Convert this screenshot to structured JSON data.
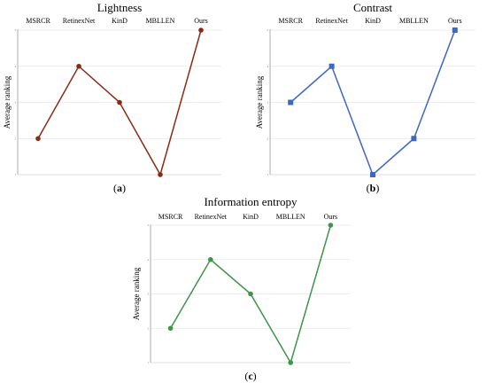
{
  "chart_data": [
    {
      "type": "line",
      "title": "Lightness",
      "ylabel": "Average ranking",
      "panel_label": "a",
      "categories": [
        "MSRCR",
        "RetinexNet",
        "KinD",
        "MBLLEN",
        "Ours"
      ],
      "values": [
        2,
        4,
        3,
        1,
        5
      ],
      "ylim": [
        1,
        5
      ],
      "yticks": [
        "1",
        "2",
        "3",
        "4",
        "5"
      ],
      "color": "#8b2a14",
      "marker": "circle",
      "grid": true
    },
    {
      "type": "line",
      "title": "Contrast",
      "ylabel": "Average ranking",
      "panel_label": "b",
      "categories": [
        "MSRCR",
        "RetinexNet",
        "KinD",
        "MBLLEN",
        "Ours"
      ],
      "values": [
        3,
        4,
        1,
        2,
        5
      ],
      "ylim": [
        1,
        5
      ],
      "yticks": [
        "1",
        "2",
        "3",
        "4",
        "5"
      ],
      "color": "#3f66c4",
      "marker": "square",
      "grid": true
    },
    {
      "type": "line",
      "title": "Information entropy",
      "ylabel": "Average ranking",
      "panel_label": "c",
      "categories": [
        "MSRCR",
        "RetinexNet",
        "KinD",
        "MBLLEN",
        "Ours"
      ],
      "values": [
        2,
        4,
        3,
        1,
        5
      ],
      "ylim": [
        1,
        5
      ],
      "yticks": [
        "1",
        "2",
        "3",
        "4",
        "5"
      ],
      "color": "#3e9448",
      "marker": "circle",
      "grid": true
    }
  ]
}
